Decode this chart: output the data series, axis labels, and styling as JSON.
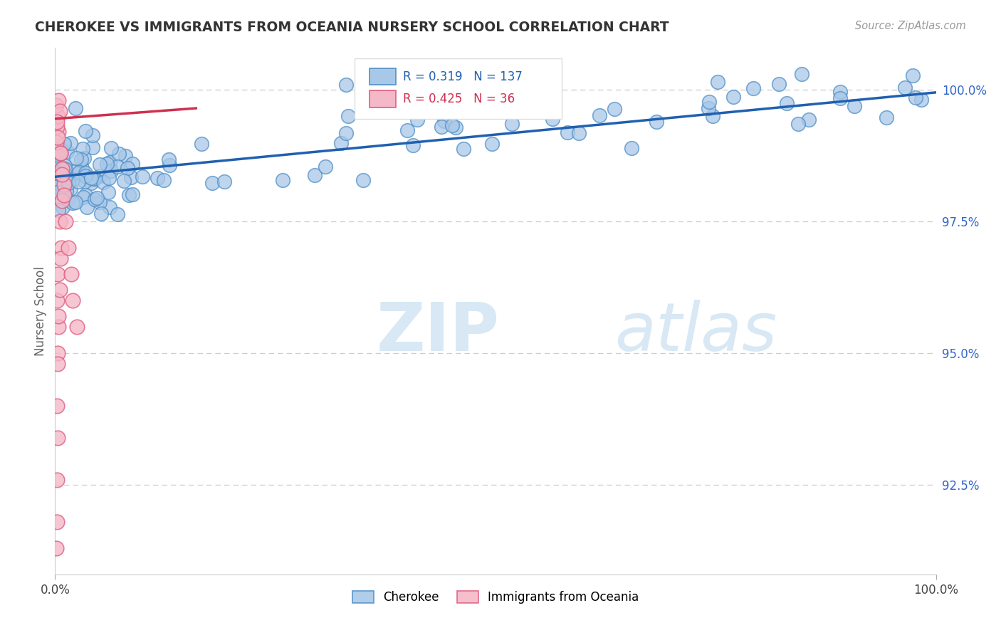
{
  "title": "CHEROKEE VS IMMIGRANTS FROM OCEANIA NURSERY SCHOOL CORRELATION CHART",
  "source": "Source: ZipAtlas.com",
  "ylabel": "Nursery School",
  "ytick_labels": [
    "92.5%",
    "95.0%",
    "97.5%",
    "100.0%"
  ],
  "ytick_values": [
    0.925,
    0.95,
    0.975,
    1.0
  ],
  "xlim": [
    0.0,
    1.0
  ],
  "ylim": [
    0.908,
    1.008
  ],
  "legend_blue_label": "Cherokee",
  "legend_pink_label": "Immigrants from Oceania",
  "R_blue": 0.319,
  "N_blue": 137,
  "R_pink": 0.425,
  "N_pink": 36,
  "blue_color": "#a8c8e8",
  "pink_color": "#f4b8c8",
  "blue_edge_color": "#5090c8",
  "pink_edge_color": "#e06080",
  "blue_line_color": "#2060b0",
  "pink_line_color": "#d03050",
  "background_color": "#ffffff",
  "blue_trend_x": [
    0.0,
    1.0
  ],
  "blue_trend_y": [
    0.9835,
    0.9995
  ],
  "pink_trend_x": [
    0.0,
    0.16
  ],
  "pink_trend_y": [
    0.9945,
    0.9965
  ],
  "watermark_color": "#d8e8f4",
  "grid_color": "#cccccc"
}
